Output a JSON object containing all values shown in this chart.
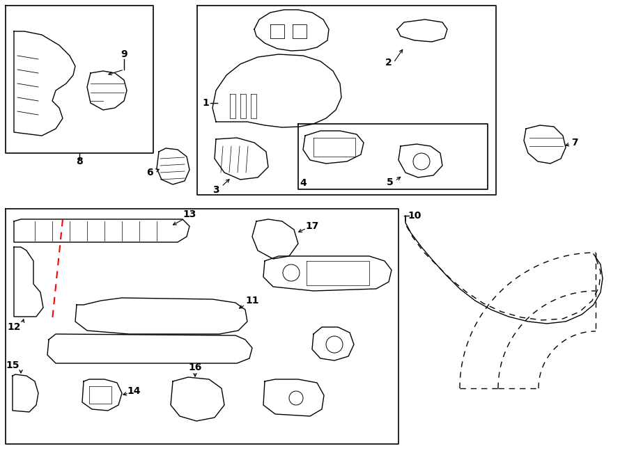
{
  "bg_color": "#ffffff",
  "line_color": "#000000",
  "red_color": "#ff0000",
  "fig_width": 9.0,
  "fig_height": 6.61,
  "dpi": 100
}
